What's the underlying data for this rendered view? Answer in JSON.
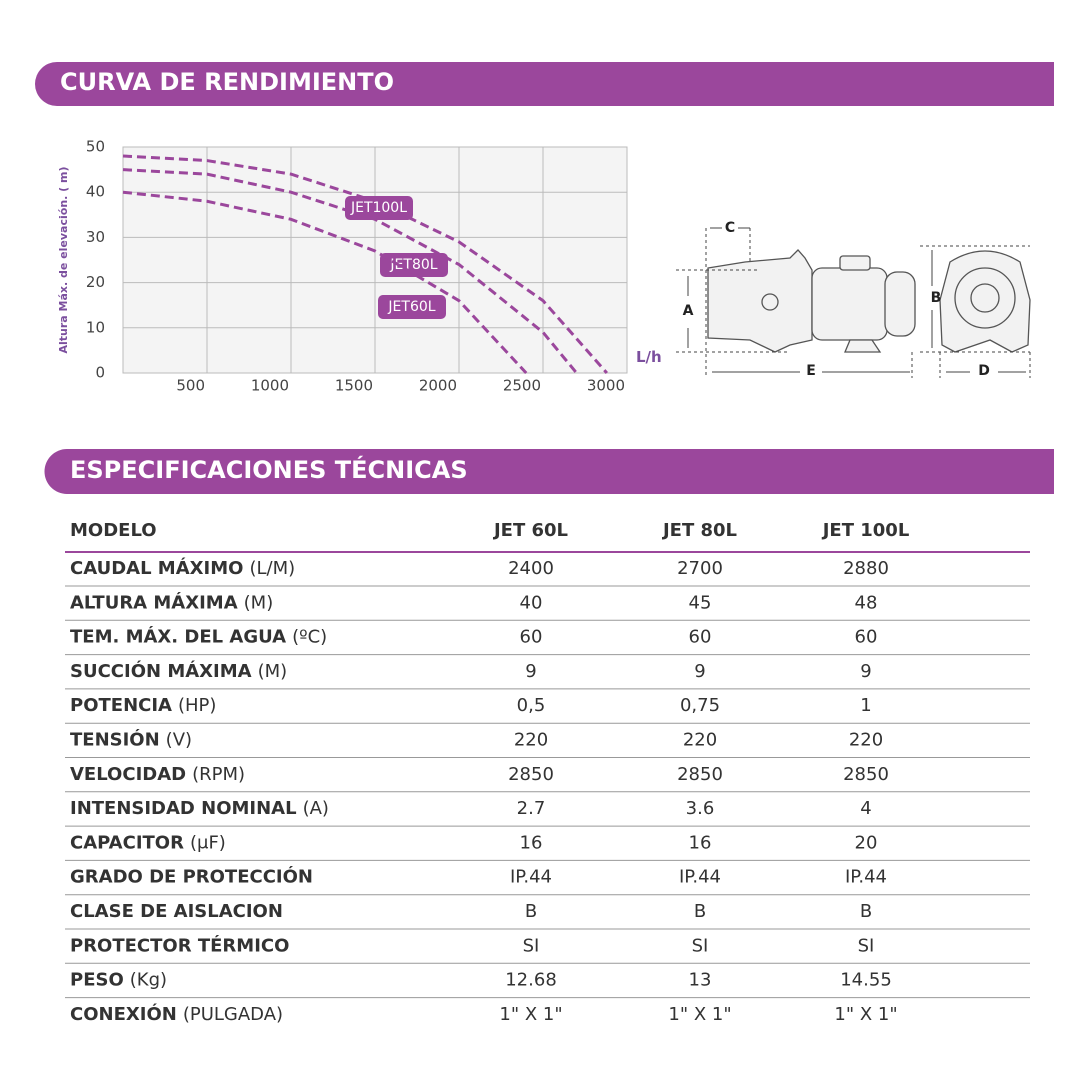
{
  "curve_section": {
    "title": "CURVA DE RENDIMIENTO"
  },
  "chart_data": {
    "type": "line",
    "y_label": "Altura Máx. de elevación. ( m)",
    "x_label": "L/h",
    "xlim": [
      0,
      3000
    ],
    "xticks": [
      500,
      1000,
      1500,
      2000,
      2500,
      3000
    ],
    "ylim": [
      0,
      50
    ],
    "yticks": [
      0,
      10,
      20,
      30,
      40,
      50
    ],
    "grid": true,
    "series": [
      {
        "name": "JET100L",
        "color": "#9b479c",
        "x": [
          0,
          500,
          1000,
          1500,
          2000,
          2500,
          2880
        ],
        "values": [
          48,
          47,
          44,
          38,
          29,
          16,
          0
        ]
      },
      {
        "name": "JET80L",
        "color": "#9b479c",
        "x": [
          0,
          500,
          1000,
          1500,
          2000,
          2500,
          2700
        ],
        "values": [
          45,
          44,
          40,
          34,
          24,
          9,
          0
        ]
      },
      {
        "name": "JET60L",
        "color": "#9b479c",
        "x": [
          0,
          500,
          1000,
          1500,
          2000,
          2400
        ],
        "values": [
          40,
          38,
          34,
          27,
          16,
          0
        ]
      }
    ]
  },
  "diagram": {
    "labels": {
      "a": "A",
      "b": "B",
      "c": "C",
      "d": "D",
      "e": "E"
    }
  },
  "spec_section": {
    "title": "ESPECIFICACIONES TÉCNICAS",
    "table": {
      "header": [
        "MODELO",
        "JET 60L",
        "JET 80L",
        "JET 100L"
      ],
      "rows": [
        {
          "label": "CAUDAL MÁXIMO",
          "unit": "(L/M)",
          "values": [
            "2400",
            "2700",
            "2880"
          ]
        },
        {
          "label": "ALTURA MÁXIMA",
          "unit": "(M)",
          "values": [
            "40",
            "45",
            "48"
          ]
        },
        {
          "label": "TEM. MÁX. DEL AGUA",
          "unit": "(ºC)",
          "values": [
            "60",
            "60",
            "60"
          ]
        },
        {
          "label": "SUCCIÓN MÁXIMA",
          "unit": "(M)",
          "values": [
            "9",
            "9",
            "9"
          ]
        },
        {
          "label": "POTENCIA",
          "unit": "(HP)",
          "values": [
            "0,5",
            "0,75",
            "1"
          ]
        },
        {
          "label": "TENSIÓN",
          "unit": "(V)",
          "values": [
            "220",
            "220",
            "220"
          ]
        },
        {
          "label": "VELOCIDAD",
          "unit": "(RPM)",
          "values": [
            "2850",
            "2850",
            "2850"
          ]
        },
        {
          "label": "INTENSIDAD NOMINAL",
          "unit": "(A)",
          "values": [
            "2.7",
            "3.6",
            "4"
          ]
        },
        {
          "label": "CAPACITOR",
          "unit": "(μF)",
          "values": [
            "16",
            "16",
            "20"
          ]
        },
        {
          "label": "GRADO DE PROTECCIÓN",
          "values": [
            "IP.44",
            "IP.44",
            "IP.44"
          ]
        },
        {
          "label": "CLASE DE AISLACION",
          "values": [
            "B",
            "B",
            "B"
          ]
        },
        {
          "label": "PROTECTOR TÉRMICO",
          "values": [
            "SI",
            "SI",
            "SI"
          ]
        },
        {
          "label": "PESO",
          "unit": "(Kg)",
          "values": [
            "12.68",
            "13",
            "14.55"
          ]
        },
        {
          "label": "CONEXIÓN",
          "unit": "(PULGADA)",
          "values": [
            "1\" X 1\"",
            "1\" X 1\"",
            "1\" X 1\""
          ]
        }
      ]
    }
  }
}
